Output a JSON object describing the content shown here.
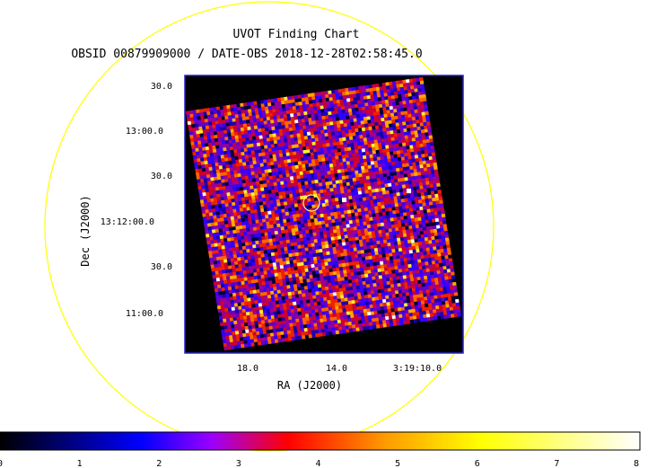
{
  "title": "UVOT Finding Chart",
  "subtitle": "OBSID 00879909000 / DATE-OBS 2018-12-28T02:58:45.0",
  "axes": {
    "xlabel": "RA (J2000)",
    "ylabel": "Dec (J2000)",
    "x_ticks": [
      "18.0",
      "14.0",
      "3:19:10.0"
    ],
    "y_ticks": [
      "30.0",
      "13:00.0",
      "30.0",
      "13:12:00.0",
      "30.0",
      "11:00.0"
    ]
  },
  "colorbar": {
    "ticks": [
      "0",
      "1",
      "2",
      "3",
      "4",
      "5",
      "6",
      "7",
      "8"
    ],
    "range": [
      0,
      8
    ],
    "colors": [
      "#000000",
      "#0000ff",
      "#9900ff",
      "#ff0000",
      "#ffa500",
      "#ffff00",
      "#ffffff"
    ]
  },
  "colors": {
    "frame": "#2222cc",
    "field_circle": "#ffff00",
    "source_marker": "#ffff66",
    "background": "#000000"
  }
}
